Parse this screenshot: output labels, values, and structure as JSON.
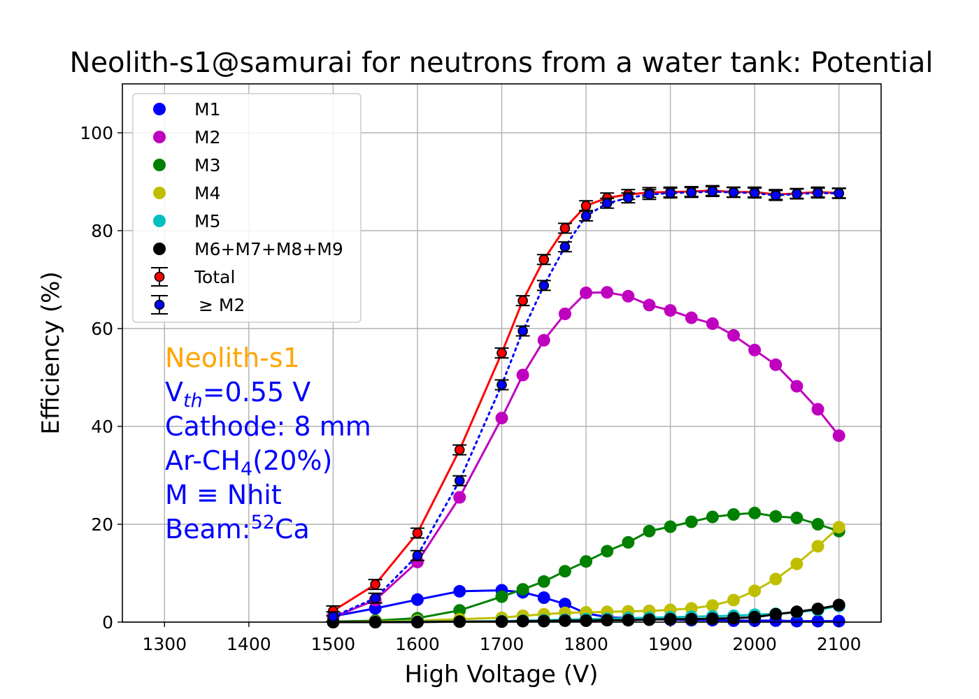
{
  "chart_data": {
    "type": "line",
    "title": "Neolith-s1@samurai for neutrons from a water tank: Potential",
    "xlabel": "High Voltage (V)",
    "ylabel": "Efficiency (%)",
    "xlim": [
      1250,
      2150
    ],
    "ylim": [
      0,
      110
    ],
    "xticks": [
      1300,
      1400,
      1500,
      1600,
      1700,
      1800,
      1900,
      2000,
      2100
    ],
    "yticks": [
      0,
      20,
      40,
      60,
      80,
      100
    ],
    "grid": true,
    "legend_position": "top-left",
    "x": [
      1500,
      1550,
      1600,
      1650,
      1700,
      1725,
      1750,
      1775,
      1800,
      1825,
      1850,
      1875,
      1900,
      1925,
      1950,
      1975,
      2000,
      2025,
      2050,
      2075,
      2100
    ],
    "series": [
      {
        "name": "M1",
        "color": "#0000ff",
        "style": "solid",
        "marker": "dot",
        "values": [
          1.2,
          2.8,
          4.6,
          6.3,
          6.5,
          6.1,
          5.0,
          3.7,
          1.8,
          1.0,
          0.8,
          0.6,
          0.5,
          0.4,
          0.4,
          0.3,
          0.3,
          0.3,
          0.2,
          0.2,
          0.2
        ]
      },
      {
        "name": "M2",
        "color": "#bf00bf",
        "style": "solid",
        "marker": "dot",
        "values": [
          1.0,
          4.5,
          12.3,
          25.5,
          41.7,
          50.5,
          57.6,
          63.0,
          67.3,
          67.4,
          66.6,
          64.8,
          63.7,
          62.2,
          61.0,
          58.6,
          55.6,
          52.6,
          48.2,
          43.5,
          38.1
        ]
      },
      {
        "name": "M3",
        "color": "#008000",
        "style": "solid",
        "marker": "dot",
        "values": [
          0.1,
          0.3,
          0.8,
          2.4,
          5.2,
          6.7,
          8.3,
          10.4,
          12.4,
          14.5,
          16.3,
          18.6,
          19.5,
          20.5,
          21.5,
          22.0,
          22.3,
          21.6,
          21.3,
          20.0,
          18.6
        ]
      },
      {
        "name": "M4",
        "color": "#bfbf00",
        "style": "solid",
        "marker": "dot",
        "values": [
          0.0,
          0.1,
          0.3,
          0.6,
          0.9,
          1.3,
          1.6,
          1.9,
          2.0,
          2.1,
          2.2,
          2.3,
          2.5,
          2.8,
          3.4,
          4.5,
          6.4,
          8.8,
          11.9,
          15.5,
          19.4
        ]
      },
      {
        "name": "M5",
        "color": "#00bfbf",
        "style": "solid",
        "marker": "dot",
        "values": [
          0.0,
          0.0,
          0.1,
          0.1,
          0.2,
          0.3,
          0.4,
          0.5,
          0.6,
          0.7,
          0.8,
          0.9,
          1.0,
          1.1,
          1.2,
          1.3,
          1.5,
          1.7,
          2.0,
          2.5,
          3.3
        ]
      },
      {
        "name": "M6+M7+M8+M9",
        "color": "#000000",
        "style": "solid",
        "marker": "dot",
        "values": [
          0.0,
          0.0,
          0.0,
          0.1,
          0.1,
          0.2,
          0.2,
          0.3,
          0.3,
          0.4,
          0.4,
          0.5,
          0.6,
          0.6,
          0.7,
          0.8,
          1.0,
          1.6,
          2.1,
          2.7,
          3.5
        ]
      },
      {
        "name": "Total",
        "color": "#ff0000",
        "style": "solid",
        "marker": "errorbar-dot",
        "fill": "#ff0000",
        "values": [
          2.3,
          7.7,
          18.2,
          35.2,
          55.0,
          65.7,
          74.1,
          80.5,
          85.1,
          86.7,
          87.4,
          87.8,
          87.9,
          88.0,
          88.2,
          87.9,
          87.9,
          87.4,
          87.6,
          87.9,
          87.7
        ]
      },
      {
        "name": "≥ M2",
        "color": "#0000ff",
        "style": "dotted",
        "marker": "errorbar-dot",
        "fill": "#0000ff",
        "values": [
          1.1,
          4.9,
          13.6,
          28.9,
          48.5,
          59.5,
          68.8,
          76.7,
          83.0,
          85.6,
          86.7,
          87.4,
          87.7,
          87.8,
          88.0,
          87.8,
          87.7,
          87.2,
          87.5,
          87.7,
          87.6
        ]
      }
    ],
    "annotation": {
      "line1": "Neolith-s1",
      "line1_color": "#ffa500",
      "line2_base": "V",
      "line2_sub": "th",
      "line2_rest": "=0.55 V",
      "line3": "Cathode: 8 mm",
      "line4_base": "Ar-CH",
      "line4_sub": "4",
      "line4_rest": "(20%)",
      "line5": "M ≡ Nhit",
      "line6_base": "Beam:",
      "line6_sup": "52",
      "line6_rest": "Ca",
      "text_color": "#0000ff"
    }
  }
}
